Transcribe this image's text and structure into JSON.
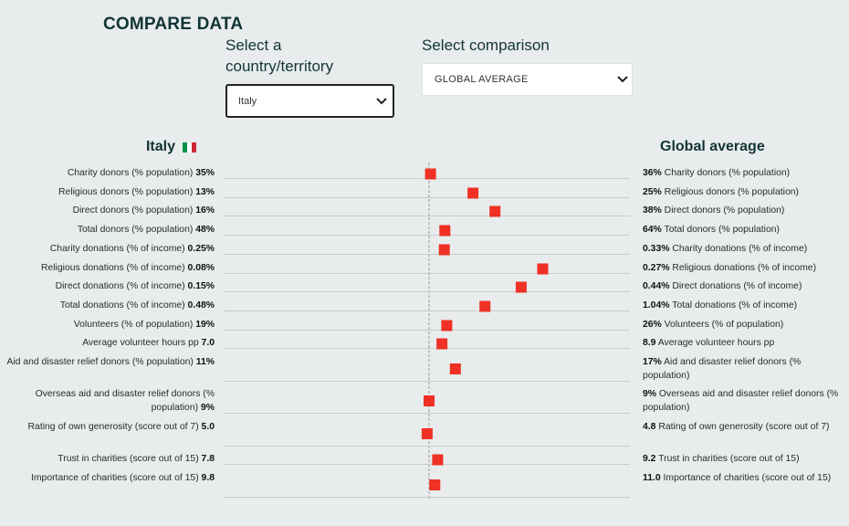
{
  "page": {
    "title": "COMPARE DATA",
    "select_country_label": "Select a country/territory",
    "select_country_value": "Italy",
    "select_comparison_label": "Select comparison",
    "select_comparison_value": "GLOBAL AVERAGE",
    "left_heading": "Italy",
    "right_heading": "Global average"
  },
  "colors": {
    "marker": "#ee3124",
    "flag": [
      "#009246",
      "#ffffff",
      "#ce2b37"
    ],
    "gridline": "#c8cccd",
    "center_line": "#999999"
  },
  "chart_data": {
    "type": "scatter",
    "title": "",
    "rows": [
      {
        "metric": "Charity donors (% population)",
        "country_value": "35%",
        "global_value": "36%",
        "ratio": 1.03
      },
      {
        "metric": "Religious donors (% population)",
        "country_value": "13%",
        "global_value": "25%",
        "ratio": 1.92
      },
      {
        "metric": "Direct donors (% population)",
        "country_value": "16%",
        "global_value": "38%",
        "ratio": 2.38
      },
      {
        "metric": "Total donors (% population)",
        "country_value": "48%",
        "global_value": "64%",
        "ratio": 1.33
      },
      {
        "metric": "Charity donations (% of income)",
        "country_value": "0.25%",
        "global_value": "0.33%",
        "ratio": 1.32
      },
      {
        "metric": "Religious donations (% of income)",
        "country_value": "0.08%",
        "global_value": "0.27%",
        "ratio": 3.38
      },
      {
        "metric": "Direct donations (% of income)",
        "country_value": "0.15%",
        "global_value": "0.44%",
        "ratio": 2.93
      },
      {
        "metric": "Total donations (% of income)",
        "country_value": "0.48%",
        "global_value": "1.04%",
        "ratio": 2.17
      },
      {
        "metric": "Volunteers (% of population)",
        "country_value": "19%",
        "global_value": "26%",
        "ratio": 1.37
      },
      {
        "metric": "Average volunteer hours pp",
        "country_value": "7.0",
        "global_value": "8.9",
        "ratio": 1.27
      },
      {
        "metric": "Aid and disaster relief donors (% population)",
        "country_value": "11%",
        "global_value": "17%",
        "ratio": 1.55
      },
      {
        "metric": "Overseas aid and disaster relief donors (% population)",
        "country_value": "9%",
        "global_value": "9%",
        "ratio": 1.0
      },
      {
        "metric": "Rating of own generosity (score out of 7)",
        "country_value": "5.0",
        "global_value": "4.8",
        "ratio": 0.96
      },
      {
        "metric": "Trust in charities (score out of 15)",
        "country_value": "7.8",
        "global_value": "9.2",
        "ratio": 1.18
      },
      {
        "metric": "Importance of charities (score out of 15)",
        "country_value": "9.8",
        "global_value": "11.0",
        "ratio": 1.12
      }
    ]
  }
}
